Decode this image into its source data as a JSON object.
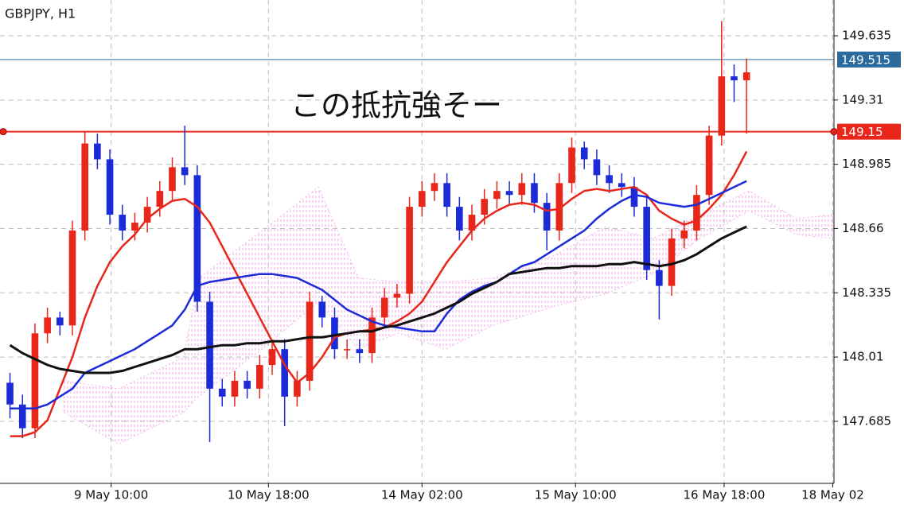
{
  "chart_data": {
    "type": "candlestick",
    "title": "GBPJPY, H1",
    "annotation": "この抵抗強そー",
    "ylim": [
      147.371,
      149.816
    ],
    "yticks": [
      149.635,
      149.31,
      148.985,
      148.66,
      148.335,
      148.01,
      147.685
    ],
    "xlim": [
      -0.8,
      66
    ],
    "xticks": [
      {
        "value": 8.1,
        "label": "9 May 10:00"
      },
      {
        "value": 20.7,
        "label": "10 May 18:00"
      },
      {
        "value": 33.0,
        "label": "14 May 02:00"
      },
      {
        "value": 45.3,
        "label": "15 May 10:00"
      },
      {
        "value": 57.2,
        "label": "16 May 18:00"
      },
      {
        "value": 65.9,
        "label": "18 May 02"
      }
    ],
    "grid": true,
    "up_color": "#e8261a",
    "down_color": "#1c2bd8",
    "open": [
      147.88,
      147.77,
      147.65,
      148.13,
      148.21,
      148.17,
      148.65,
      149.09,
      149.01,
      148.73,
      148.65,
      148.69,
      148.77,
      148.85,
      148.97,
      148.93,
      148.29,
      147.85,
      147.81,
      147.89,
      147.85,
      147.97,
      148.05,
      147.81,
      147.89,
      148.29,
      148.21,
      148.05,
      148.05,
      148.03,
      148.21,
      148.31,
      148.33,
      148.77,
      148.85,
      148.89,
      148.77,
      148.65,
      148.73,
      148.81,
      148.85,
      148.83,
      148.89,
      148.79,
      148.65,
      148.89,
      149.07,
      149.01,
      148.93,
      148.89,
      148.87,
      148.77,
      148.45,
      148.37,
      148.61,
      148.65,
      148.83,
      149.13,
      149.43,
      149.41
    ],
    "high": [
      147.93,
      147.82,
      148.18,
      148.26,
      148.24,
      148.7,
      149.15,
      149.14,
      149.06,
      148.78,
      148.74,
      148.82,
      148.9,
      149.02,
      149.18,
      148.98,
      148.34,
      147.9,
      147.94,
      147.94,
      148.02,
      148.1,
      148.1,
      147.94,
      148.34,
      148.32,
      148.26,
      148.1,
      148.1,
      148.26,
      148.36,
      148.38,
      148.82,
      148.9,
      148.94,
      148.94,
      148.82,
      148.78,
      148.86,
      148.9,
      148.9,
      148.94,
      148.94,
      148.84,
      148.94,
      149.12,
      149.1,
      149.06,
      148.98,
      148.94,
      148.92,
      148.82,
      148.5,
      148.66,
      148.7,
      148.88,
      149.18,
      149.71,
      149.49,
      149.52
    ],
    "low": [
      147.7,
      147.6,
      147.6,
      148.08,
      148.12,
      148.12,
      148.6,
      148.96,
      148.68,
      148.6,
      148.6,
      148.64,
      148.72,
      148.8,
      148.88,
      148.24,
      147.58,
      147.76,
      147.76,
      147.8,
      147.8,
      147.92,
      147.66,
      147.76,
      147.84,
      148.16,
      148.0,
      148.0,
      147.98,
      147.98,
      148.16,
      148.26,
      148.28,
      148.72,
      148.8,
      148.72,
      148.6,
      148.6,
      148.68,
      148.76,
      148.78,
      148.78,
      148.74,
      148.55,
      148.6,
      148.84,
      148.96,
      148.88,
      148.84,
      148.82,
      148.72,
      148.4,
      148.2,
      148.32,
      148.56,
      148.6,
      148.78,
      149.08,
      149.3,
      149.14
    ],
    "close": [
      147.77,
      147.65,
      148.13,
      148.21,
      148.17,
      148.65,
      149.09,
      149.01,
      148.73,
      148.65,
      148.69,
      148.77,
      148.85,
      148.97,
      148.93,
      148.29,
      147.85,
      147.81,
      147.89,
      147.85,
      147.97,
      148.05,
      147.81,
      147.89,
      148.29,
      148.21,
      148.05,
      148.05,
      148.03,
      148.21,
      148.31,
      148.33,
      148.77,
      148.85,
      148.89,
      148.77,
      148.65,
      148.73,
      148.81,
      148.85,
      148.83,
      148.89,
      148.79,
      148.65,
      148.89,
      149.07,
      149.01,
      148.93,
      148.89,
      148.87,
      148.77,
      148.45,
      148.37,
      148.61,
      148.65,
      148.83,
      149.13,
      149.43,
      149.41,
      149.45
    ],
    "lines": [
      {
        "color": "#e8261a",
        "width": 2.5,
        "values": [
          147.61,
          147.61,
          147.63,
          147.69,
          147.85,
          148.01,
          148.21,
          148.37,
          148.49,
          148.57,
          148.63,
          148.71,
          148.76,
          148.8,
          148.81,
          148.77,
          148.69,
          148.57,
          148.45,
          148.33,
          148.21,
          148.09,
          147.97,
          147.88,
          147.93,
          148.01,
          148.11,
          148.13,
          148.14,
          148.15,
          148.16,
          148.19,
          148.23,
          148.29,
          148.39,
          148.49,
          148.57,
          148.65,
          148.71,
          148.75,
          148.78,
          148.79,
          148.78,
          148.75,
          148.76,
          148.81,
          148.85,
          148.86,
          148.85,
          148.86,
          148.87,
          148.83,
          148.75,
          148.71,
          148.68,
          148.7,
          148.76,
          148.83,
          148.93,
          149.05
        ]
      },
      {
        "color": "#1c2bd8",
        "width": 2.5,
        "values": [
          147.75,
          147.75,
          147.75,
          147.77,
          147.81,
          147.85,
          147.93,
          147.96,
          147.99,
          148.02,
          148.05,
          148.09,
          148.13,
          148.17,
          148.25,
          148.37,
          148.39,
          148.4,
          148.41,
          148.42,
          148.43,
          148.43,
          148.42,
          148.41,
          148.38,
          148.35,
          148.3,
          148.25,
          148.22,
          148.19,
          148.17,
          148.16,
          148.15,
          148.14,
          148.14,
          148.23,
          148.3,
          148.34,
          148.37,
          148.39,
          148.43,
          148.47,
          148.49,
          148.53,
          148.57,
          148.61,
          148.65,
          148.71,
          148.76,
          148.8,
          148.83,
          148.82,
          148.79,
          148.78,
          148.77,
          148.78,
          148.81,
          148.84,
          148.87,
          148.9
        ]
      },
      {
        "color": "#111111",
        "width": 3,
        "values": [
          148.07,
          148.03,
          148.0,
          147.97,
          147.95,
          147.94,
          147.93,
          147.93,
          147.93,
          147.94,
          147.96,
          147.98,
          148.0,
          148.02,
          148.05,
          148.05,
          148.06,
          148.07,
          148.07,
          148.08,
          148.08,
          148.09,
          148.09,
          148.1,
          148.11,
          148.11,
          148.12,
          148.13,
          148.14,
          148.14,
          148.16,
          148.17,
          148.19,
          148.21,
          148.23,
          148.26,
          148.29,
          148.33,
          148.36,
          148.39,
          148.43,
          148.44,
          148.45,
          148.46,
          148.46,
          148.47,
          148.47,
          148.47,
          148.48,
          148.48,
          148.49,
          148.48,
          148.47,
          148.48,
          148.5,
          148.53,
          148.57,
          148.61,
          148.64,
          148.67
        ]
      }
    ],
    "cloud": {
      "color": "#f2a6e6",
      "x": [
        4.3,
        8.7,
        13.9,
        15.1,
        20.2,
        24.7,
        27.9,
        31.1,
        34.9,
        38.7,
        43.8,
        47.7,
        51.5,
        55.3,
        59.2,
        63.0,
        65.9
      ],
      "span_a": [
        147.89,
        147.85,
        148.01,
        148.41,
        148.65,
        148.87,
        148.41,
        148.39,
        148.39,
        148.41,
        148.53,
        148.67,
        148.61,
        148.73,
        148.85,
        148.71,
        148.73
      ],
      "span_b": [
        147.73,
        147.57,
        147.73,
        147.81,
        148.05,
        148.29,
        148.05,
        148.13,
        148.05,
        148.17,
        148.27,
        148.33,
        148.43,
        148.61,
        148.75,
        148.63,
        148.61
      ]
    },
    "levels": [
      {
        "value": 149.515,
        "color": "#2b6a9c"
      },
      {
        "value": 149.15,
        "color": "#e8261a"
      }
    ]
  }
}
